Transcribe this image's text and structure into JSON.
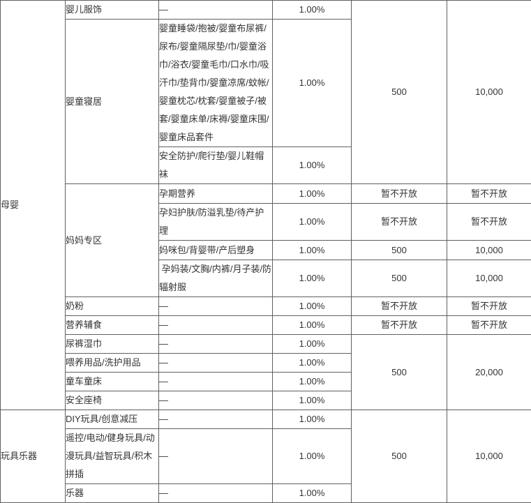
{
  "colors": {
    "text": "#333333",
    "border": "#5f5f5f",
    "background": "#ffffff",
    "bottom_strip": "#e9e9e9"
  },
  "table": {
    "rate_value": "1.00%",
    "not_open_label": "暂不开放",
    "rows": [
      {
        "cells": [
          {
            "t": "母婴",
            "rs": 13,
            "col": "cat"
          },
          {
            "t": "婴儿服饰",
            "col": "sub"
          },
          {
            "t": "—",
            "col": "detail"
          },
          {
            "t": "1.00%",
            "col": "pct"
          },
          {
            "t": "500",
            "rs": 3,
            "col": "num"
          },
          {
            "t": "10,000",
            "rs": 3,
            "col": "num"
          }
        ]
      },
      {
        "cells": [
          {
            "t": "婴童寝居",
            "rs": 2,
            "col": "sub"
          },
          {
            "t": "婴童睡袋/抱被/婴童布尿裤/尿布/婴童隔尿垫/巾/婴童浴巾/浴衣/婴童毛巾/口水巾/吸汗巾/垫背巾/婴童凉席/蚊帐/婴童枕芯/枕套/婴童被子/被套/婴童床单/床褥/婴童床围/婴童床品套件",
            "col": "detail"
          },
          {
            "t": "1.00%",
            "col": "pct"
          }
        ]
      },
      {
        "cells": [
          {
            "t": "安全防护/爬行垫/婴儿鞋帽袜",
            "col": "detail"
          },
          {
            "t": "1.00%",
            "col": "pct"
          }
        ]
      },
      {
        "cells": [
          {
            "t": "妈妈专区",
            "rs": 4,
            "col": "sub"
          },
          {
            "t": "孕期营养",
            "col": "detail"
          },
          {
            "t": "1.00%",
            "col": "pct"
          },
          {
            "t": "暂不开放",
            "col": "num"
          },
          {
            "t": "暂不开放",
            "col": "num"
          }
        ]
      },
      {
        "cells": [
          {
            "t": "孕妇护肤/防溢乳垫/待产护理",
            "col": "detail"
          },
          {
            "t": "1.00%",
            "col": "pct"
          },
          {
            "t": "暂不开放",
            "col": "num"
          },
          {
            "t": "暂不开放",
            "col": "num"
          }
        ]
      },
      {
        "cells": [
          {
            "t": "妈咪包/背婴带/产后塑身",
            "col": "detail"
          },
          {
            "t": "1.00%",
            "col": "pct"
          },
          {
            "t": "500",
            "col": "num"
          },
          {
            "t": "10,000",
            "col": "num"
          }
        ]
      },
      {
        "cells": [
          {
            "t": " 孕妈装/文胸/内裤/月子装/防辐射服",
            "col": "detail"
          },
          {
            "t": "1.00%",
            "col": "pct"
          },
          {
            "t": "500",
            "col": "num"
          },
          {
            "t": "10,000",
            "col": "num"
          }
        ]
      },
      {
        "cells": [
          {
            "t": "奶粉",
            "col": "sub"
          },
          {
            "t": "—",
            "col": "detail"
          },
          {
            "t": "1.00%",
            "col": "pct"
          },
          {
            "t": "暂不开放",
            "col": "num"
          },
          {
            "t": "暂不开放",
            "col": "num"
          }
        ]
      },
      {
        "cells": [
          {
            "t": "营养辅食",
            "col": "sub"
          },
          {
            "t": "—",
            "col": "detail"
          },
          {
            "t": "1.00%",
            "col": "pct"
          },
          {
            "t": "暂不开放",
            "col": "num"
          },
          {
            "t": "暂不开放",
            "col": "num"
          }
        ]
      },
      {
        "cells": [
          {
            "t": "尿裤湿巾",
            "col": "sub"
          },
          {
            "t": "—",
            "col": "detail"
          },
          {
            "t": "1.00%",
            "col": "pct"
          },
          {
            "t": "500",
            "rs": 4,
            "col": "num"
          },
          {
            "t": "20,000",
            "rs": 4,
            "col": "num"
          }
        ]
      },
      {
        "cells": [
          {
            "t": "喂养用品/洗护用品",
            "col": "sub"
          },
          {
            "t": "—",
            "col": "detail"
          },
          {
            "t": "1.00%",
            "col": "pct"
          }
        ]
      },
      {
        "cells": [
          {
            "t": "童车童床",
            "col": "sub"
          },
          {
            "t": "—",
            "col": "detail"
          },
          {
            "t": "1.00%",
            "col": "pct"
          }
        ]
      },
      {
        "cells": [
          {
            "t": "安全座椅",
            "col": "sub"
          },
          {
            "t": "—",
            "col": "detail"
          },
          {
            "t": "1.00%",
            "col": "pct"
          }
        ]
      },
      {
        "cells": [
          {
            "t": "玩具乐器",
            "rs": 3,
            "col": "cat"
          },
          {
            "t": "DIY玩具/创意减压",
            "col": "sub"
          },
          {
            "t": "—",
            "col": "detail"
          },
          {
            "t": "1.00%",
            "col": "pct"
          },
          {
            "t": "500",
            "rs": 3,
            "col": "num"
          },
          {
            "t": "10,000",
            "rs": 3,
            "col": "num"
          }
        ]
      },
      {
        "cells": [
          {
            "t": "遥控/电动/健身玩具/动漫玩具/益智玩具/积木拼插",
            "col": "sub"
          },
          {
            "t": "—",
            "col": "detail"
          },
          {
            "t": "1.00%",
            "col": "pct"
          }
        ]
      },
      {
        "cells": [
          {
            "t": "乐器",
            "col": "sub"
          },
          {
            "t": "—",
            "col": "detail"
          },
          {
            "t": "1.00%",
            "col": "pct"
          }
        ]
      }
    ]
  }
}
